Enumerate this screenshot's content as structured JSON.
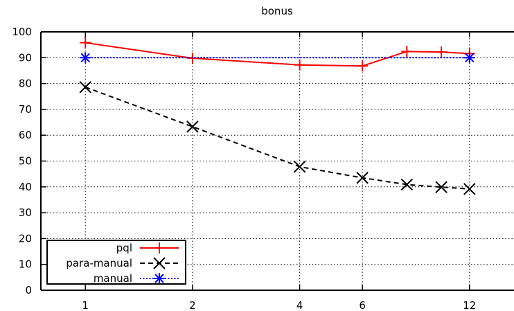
{
  "chart_data": {
    "type": "line",
    "title": "bonus",
    "xlabel": "",
    "ylabel": "",
    "x_scale": "log2",
    "x_ticks": [
      1,
      2,
      4,
      6,
      12
    ],
    "x_tick_labels": [
      "1",
      "2",
      "4",
      "6",
      "12"
    ],
    "xlim": [
      0.75,
      16
    ],
    "ylim": [
      0,
      100
    ],
    "y_ticks": [
      0,
      10,
      20,
      30,
      40,
      50,
      60,
      70,
      80,
      90,
      100
    ],
    "grid": true,
    "legend_position": "bottom-left",
    "series": [
      {
        "name": "pql",
        "color": "#ff0000",
        "dash": "solid",
        "marker": "plus",
        "x": [
          1,
          2,
          4,
          6,
          8,
          10,
          12
        ],
        "y": [
          95.8,
          89.8,
          87.2,
          86.8,
          92.4,
          92.2,
          91.6
        ]
      },
      {
        "name": "para-manual",
        "color": "#000000",
        "dash": "dashed",
        "marker": "cross",
        "x": [
          1,
          2,
          4,
          6,
          8,
          10,
          12
        ],
        "y": [
          78.6,
          63.3,
          47.8,
          43.5,
          40.9,
          39.9,
          39.2
        ]
      },
      {
        "name": "manual",
        "color": "#0000ff",
        "dash": "dotted",
        "marker": "star",
        "x": [
          1,
          12
        ],
        "y": [
          90,
          90
        ]
      }
    ]
  }
}
